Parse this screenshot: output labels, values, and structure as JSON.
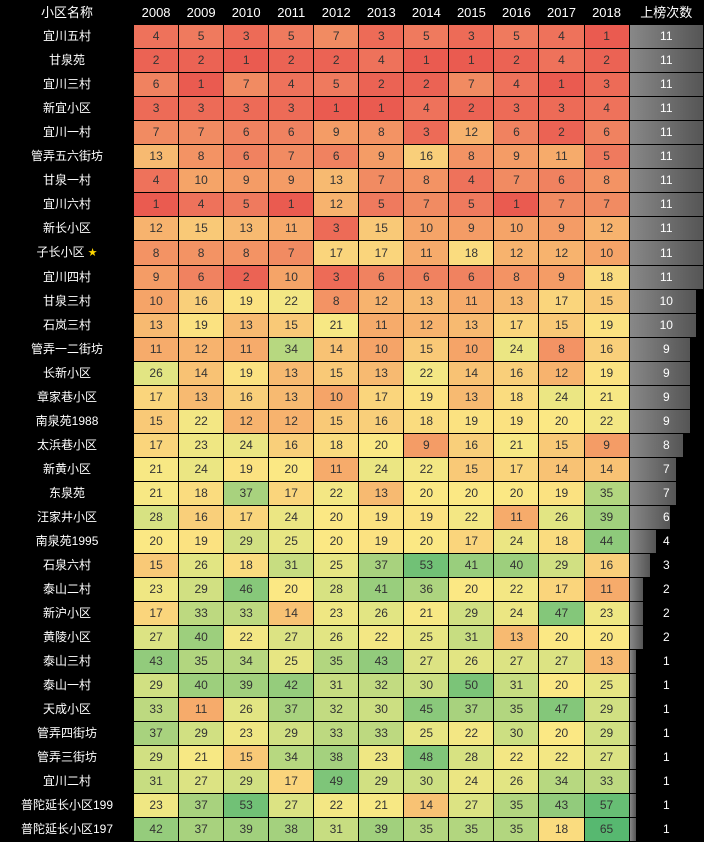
{
  "header": {
    "name_col": "小区名称",
    "count_col": "上榜次数"
  },
  "years": [
    "2008",
    "2009",
    "2010",
    "2011",
    "2012",
    "2013",
    "2014",
    "2015",
    "2016",
    "2017",
    "2018"
  ],
  "max_count": 11,
  "colors": {
    "header_bg": "#000000",
    "header_fg": "#ffffff",
    "cell_text": "#333333",
    "grid": "#000000",
    "count_grad_start": "#888888",
    "count_grad_end": "#555555"
  },
  "heat_scale": {
    "min_val": 1,
    "max_val": 65,
    "stops": [
      {
        "v": 1,
        "c": "#ea5b50"
      },
      {
        "v": 5,
        "c": "#ef7a5e"
      },
      {
        "v": 10,
        "c": "#f5a468"
      },
      {
        "v": 15,
        "c": "#f9c977"
      },
      {
        "v": 20,
        "c": "#fbe884"
      },
      {
        "v": 25,
        "c": "#e7e683"
      },
      {
        "v": 30,
        "c": "#ccdf82"
      },
      {
        "v": 37,
        "c": "#a8d27e"
      },
      {
        "v": 45,
        "c": "#8ac97b"
      },
      {
        "v": 55,
        "c": "#6bbf75"
      },
      {
        "v": 65,
        "c": "#57b870"
      }
    ]
  },
  "rows": [
    {
      "name": "宜川五村",
      "star": false,
      "vals": [
        4,
        5,
        3,
        5,
        7,
        3,
        5,
        3,
        5,
        4,
        1
      ],
      "count": 11
    },
    {
      "name": "甘泉苑",
      "star": false,
      "vals": [
        2,
        2,
        1,
        2,
        2,
        4,
        1,
        1,
        2,
        4,
        2
      ],
      "count": 11
    },
    {
      "name": "宜川三村",
      "star": false,
      "vals": [
        6,
        1,
        7,
        4,
        5,
        2,
        2,
        7,
        4,
        1,
        3
      ],
      "count": 11
    },
    {
      "name": "新宜小区",
      "star": false,
      "vals": [
        3,
        3,
        3,
        3,
        1,
        1,
        4,
        2,
        3,
        3,
        4
      ],
      "count": 11
    },
    {
      "name": "宜川一村",
      "star": false,
      "vals": [
        7,
        7,
        6,
        6,
        9,
        8,
        3,
        12,
        6,
        2,
        6
      ],
      "count": 11
    },
    {
      "name": "管弄五六街坊",
      "star": false,
      "vals": [
        13,
        8,
        6,
        7,
        6,
        9,
        16,
        8,
        9,
        11,
        5
      ],
      "count": 11
    },
    {
      "name": "甘泉一村",
      "star": false,
      "vals": [
        4,
        10,
        9,
        9,
        13,
        7,
        8,
        4,
        7,
        6,
        8
      ],
      "count": 11
    },
    {
      "name": "宜川六村",
      "star": false,
      "vals": [
        1,
        4,
        5,
        1,
        12,
        5,
        7,
        5,
        1,
        7,
        7
      ],
      "count": 11
    },
    {
      "name": "新长小区",
      "star": false,
      "vals": [
        12,
        15,
        13,
        11,
        3,
        15,
        10,
        9,
        10,
        9,
        12
      ],
      "count": 11
    },
    {
      "name": "子长小区",
      "star": true,
      "vals": [
        8,
        8,
        8,
        7,
        17,
        17,
        11,
        18,
        12,
        12,
        10
      ],
      "count": 11
    },
    {
      "name": "宜川四村",
      "star": false,
      "vals": [
        9,
        6,
        2,
        10,
        3,
        6,
        6,
        6,
        8,
        9,
        18
      ],
      "count": 11
    },
    {
      "name": "甘泉三村",
      "star": false,
      "vals": [
        10,
        16,
        19,
        22,
        8,
        12,
        13,
        11,
        13,
        17,
        15
      ],
      "count": 10
    },
    {
      "name": "石岚三村",
      "star": false,
      "vals": [
        13,
        19,
        13,
        15,
        21,
        11,
        12,
        13,
        17,
        15,
        19
      ],
      "count": 10
    },
    {
      "name": "管弄一二街坊",
      "star": false,
      "vals": [
        11,
        12,
        11,
        34,
        14,
        10,
        15,
        10,
        24,
        8,
        16
      ],
      "count": 9
    },
    {
      "name": "长新小区",
      "star": false,
      "vals": [
        26,
        14,
        19,
        13,
        15,
        13,
        22,
        14,
        16,
        12,
        19
      ],
      "count": 9
    },
    {
      "name": "章家巷小区",
      "star": false,
      "vals": [
        17,
        13,
        16,
        13,
        10,
        17,
        19,
        13,
        18,
        24,
        21
      ],
      "count": 9
    },
    {
      "name": "南泉苑1988",
      "star": false,
      "vals": [
        15,
        22,
        12,
        12,
        15,
        16,
        18,
        19,
        19,
        20,
        22
      ],
      "count": 9
    },
    {
      "name": "太浜巷小区",
      "star": false,
      "vals": [
        17,
        23,
        24,
        16,
        18,
        20,
        9,
        16,
        21,
        15,
        9
      ],
      "count": 8
    },
    {
      "name": "新黄小区",
      "star": false,
      "vals": [
        21,
        24,
        19,
        20,
        11,
        24,
        22,
        15,
        17,
        14,
        14
      ],
      "count": 7
    },
    {
      "name": "东泉苑",
      "star": false,
      "vals": [
        21,
        18,
        37,
        17,
        22,
        13,
        20,
        20,
        20,
        19,
        35
      ],
      "count": 7
    },
    {
      "name": "汪家井小区",
      "star": false,
      "vals": [
        28,
        16,
        17,
        24,
        20,
        19,
        19,
        22,
        11,
        26,
        39
      ],
      "count": 6
    },
    {
      "name": "南泉苑1995",
      "star": false,
      "vals": [
        20,
        19,
        29,
        25,
        20,
        19,
        20,
        17,
        24,
        18,
        44
      ],
      "count": 4
    },
    {
      "name": "石泉六村",
      "star": false,
      "vals": [
        15,
        26,
        18,
        31,
        25,
        37,
        53,
        41,
        40,
        29,
        16
      ],
      "count": 3
    },
    {
      "name": "泰山二村",
      "star": false,
      "vals": [
        23,
        29,
        46,
        20,
        28,
        41,
        36,
        20,
        22,
        17,
        11
      ],
      "count": 2
    },
    {
      "name": "新沪小区",
      "star": false,
      "vals": [
        17,
        33,
        33,
        14,
        23,
        26,
        21,
        29,
        24,
        47,
        23
      ],
      "count": 2
    },
    {
      "name": "黄陵小区",
      "star": false,
      "vals": [
        27,
        40,
        22,
        27,
        26,
        22,
        25,
        31,
        13,
        20,
        20
      ],
      "count": 2
    },
    {
      "name": "泰山三村",
      "star": false,
      "vals": [
        43,
        35,
        34,
        25,
        35,
        43,
        27,
        26,
        27,
        27,
        13
      ],
      "count": 1
    },
    {
      "name": "泰山一村",
      "star": false,
      "vals": [
        29,
        40,
        39,
        42,
        31,
        32,
        30,
        50,
        31,
        20,
        25
      ],
      "count": 1
    },
    {
      "name": "天成小区",
      "star": false,
      "vals": [
        33,
        11,
        26,
        37,
        32,
        30,
        45,
        37,
        35,
        47,
        29
      ],
      "count": 1
    },
    {
      "name": "管弄四街坊",
      "star": false,
      "vals": [
        37,
        29,
        23,
        29,
        33,
        33,
        25,
        22,
        30,
        20,
        29
      ],
      "count": 1
    },
    {
      "name": "管弄三街坊",
      "star": false,
      "vals": [
        29,
        21,
        15,
        34,
        38,
        23,
        48,
        28,
        22,
        22,
        27
      ],
      "count": 1
    },
    {
      "name": "宜川二村",
      "star": false,
      "vals": [
        31,
        27,
        29,
        17,
        49,
        29,
        30,
        24,
        26,
        34,
        33
      ],
      "count": 1
    },
    {
      "name": "普陀延长小区199",
      "star": false,
      "vals": [
        23,
        37,
        53,
        27,
        22,
        21,
        14,
        27,
        35,
        43,
        57
      ],
      "count": 1
    },
    {
      "name": "普陀延长小区197",
      "star": false,
      "vals": [
        42,
        37,
        39,
        38,
        31,
        39,
        35,
        35,
        35,
        18,
        65
      ],
      "count": 1
    }
  ]
}
